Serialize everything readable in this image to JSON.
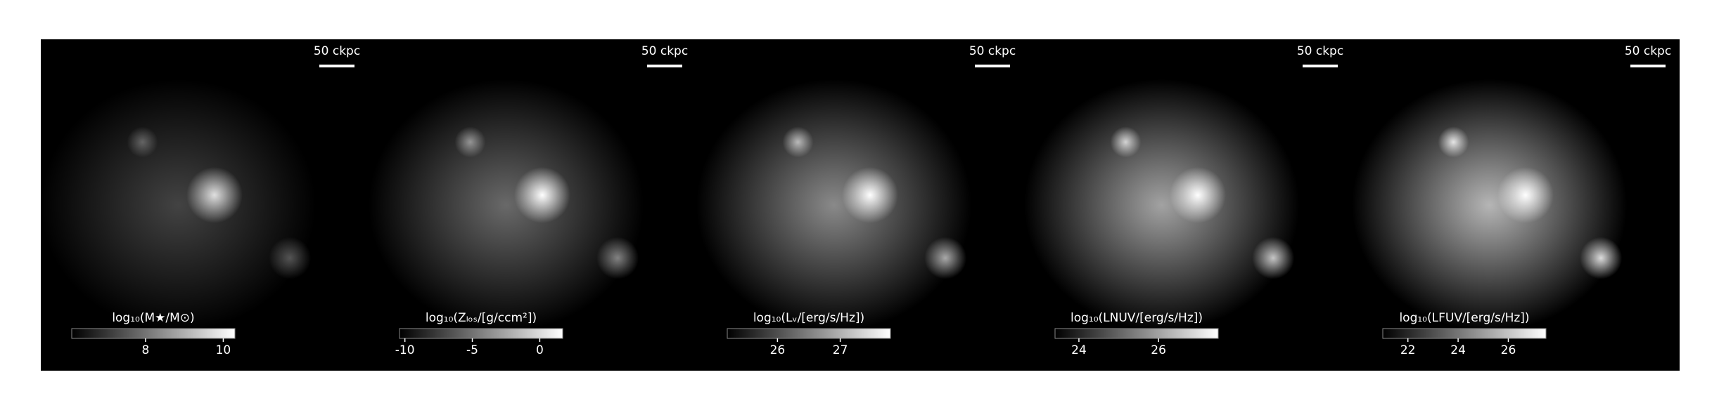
{
  "chart_data": [
    {
      "type": "heatmap",
      "scale_label": "50 ckpc",
      "colorbar_label": "log₁₀(M★/M⊙)",
      "clim": [
        6.1,
        10.3
      ],
      "cticks": [
        8,
        10
      ]
    },
    {
      "type": "heatmap",
      "scale_label": "50 ckpc",
      "colorbar_label": "log₁₀(Zₗₒₛ/[g/ccm²])",
      "clim": [
        -10.4,
        1.7
      ],
      "cticks": [
        -10,
        -5,
        0
      ]
    },
    {
      "type": "heatmap",
      "scale_label": "50 ckpc",
      "colorbar_label": "log₁₀(Lᵥ/[erg/s/Hz])",
      "clim": [
        25.2,
        27.8
      ],
      "cticks": [
        26,
        27
      ]
    },
    {
      "type": "heatmap",
      "scale_label": "50 ckpc",
      "colorbar_label": "log₁₀(LNUV/[erg/s/Hz])",
      "clim": [
        23.4,
        27.5
      ],
      "cticks": [
        24,
        26
      ]
    },
    {
      "type": "heatmap",
      "scale_label": "50 ckpc",
      "colorbar_label": "log₁₀(LFUV/[erg/s/Hz])",
      "clim": [
        21.0,
        27.5
      ],
      "cticks": [
        22,
        24,
        26
      ]
    }
  ]
}
